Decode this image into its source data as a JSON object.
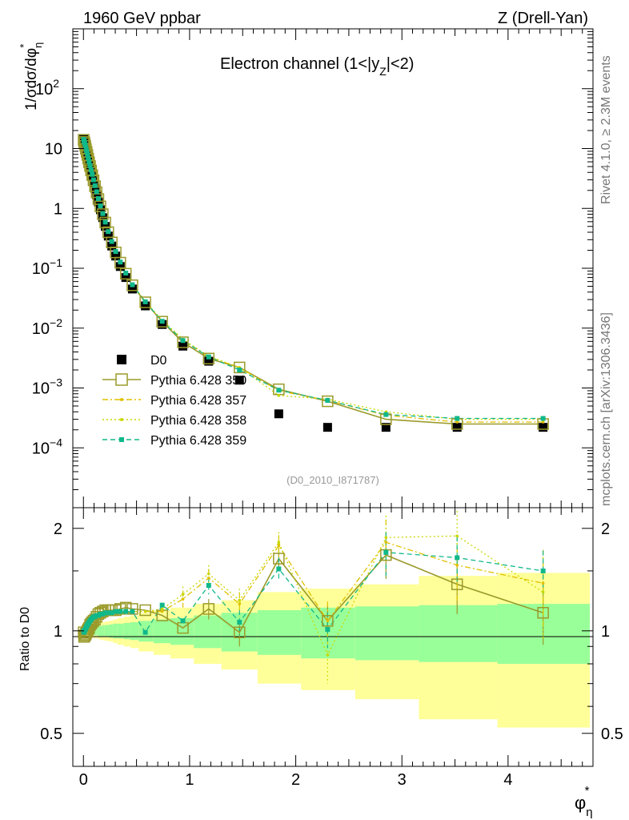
{
  "header": {
    "left": "1960 GeV ppbar",
    "right": "Z (Drell-Yan)",
    "side_top": "Rivet 4.1.0, ≥ 2.3M events",
    "side_bottom": "mcplots.cern.ch [arXiv:1306.3436]"
  },
  "chart_data": [
    {
      "type": "scatter",
      "panel": "main",
      "title": "Electron channel (1<|y",
      "title_sub": "Z",
      "title_end": "|<2)",
      "reference": "(D0_2010_I871787)",
      "ylabel": "1/σdσ/dφ",
      "ylabel_sub": "η",
      "ylabel_sup": "*",
      "yscale": "log",
      "ylim": [
        1e-05,
        1000
      ],
      "xlim": [
        -0.1,
        4.8
      ],
      "y_ticks": [
        {
          "v": 100,
          "base": "10",
          "exp": "2"
        },
        {
          "v": 10,
          "base": "10",
          "exp": ""
        },
        {
          "v": 1,
          "base": "1",
          "exp": ""
        },
        {
          "v": 0.1,
          "base": "10",
          "exp": "−1"
        },
        {
          "v": 0.01,
          "base": "10",
          "exp": "−2"
        },
        {
          "v": 0.001,
          "base": "10",
          "exp": "−3"
        },
        {
          "v": 0.0001,
          "base": "10",
          "exp": "−4"
        }
      ],
      "x": [
        0.002,
        0.006,
        0.011,
        0.017,
        0.023,
        0.03,
        0.037,
        0.045,
        0.053,
        0.062,
        0.072,
        0.083,
        0.095,
        0.109,
        0.124,
        0.141,
        0.16,
        0.182,
        0.206,
        0.234,
        0.267,
        0.304,
        0.347,
        0.399,
        0.461,
        0.583,
        0.742,
        0.937,
        1.18,
        1.47,
        1.84,
        2.3,
        2.85,
        3.52,
        4.33
      ],
      "series": [
        {
          "name": "D0",
          "values": [
            14.2,
            13.4,
            12.6,
            11.4,
            10.1,
            8.9,
            7.8,
            6.7,
            5.8,
            4.9,
            4.1,
            3.4,
            2.75,
            2.15,
            1.68,
            1.28,
            0.95,
            0.7,
            0.5,
            0.345,
            0.235,
            0.16,
            0.107,
            0.07,
            0.045,
            0.0235,
            0.0115,
            0.005,
            0.0028,
            0.00135,
            0.00037,
            0.00022,
            0.00022,
            0.00022,
            0.00022
          ]
        },
        {
          "name": "Pythia 6.428 350",
          "values": [
            14.0,
            12.9,
            12.2,
            11.1,
            9.9,
            8.8,
            7.8,
            6.8,
            5.9,
            5.1,
            4.3,
            3.6,
            2.95,
            2.35,
            1.86,
            1.43,
            1.08,
            0.8,
            0.58,
            0.4,
            0.27,
            0.184,
            0.124,
            0.081,
            0.052,
            0.027,
            0.0128,
            0.0058,
            0.0031,
            0.0022,
            0.00095,
            0.0006,
            0.0003,
            0.00025,
            0.00025
          ]
        },
        {
          "name": "Pythia 6.428 357",
          "values": [
            14.1,
            13.2,
            12.5,
            11.4,
            10.2,
            9.1,
            8.0,
            7.0,
            6.0,
            5.2,
            4.4,
            3.7,
            3.0,
            2.4,
            1.9,
            1.47,
            1.1,
            0.82,
            0.59,
            0.41,
            0.28,
            0.19,
            0.127,
            0.083,
            0.053,
            0.0275,
            0.013,
            0.0064,
            0.0033,
            0.0022,
            0.0009,
            0.00062,
            0.00035,
            0.00027,
            0.00027
          ]
        },
        {
          "name": "Pythia 6.428 358",
          "values": [
            14.3,
            13.4,
            12.7,
            11.5,
            10.3,
            9.2,
            8.1,
            7.1,
            6.1,
            5.3,
            4.5,
            3.75,
            3.05,
            2.45,
            1.93,
            1.5,
            1.12,
            0.83,
            0.6,
            0.42,
            0.285,
            0.193,
            0.129,
            0.085,
            0.054,
            0.028,
            0.0135,
            0.0065,
            0.0034,
            0.0022,
            0.00075,
            0.00065,
            0.0004,
            0.0003,
            0.0003
          ]
        },
        {
          "name": "Pythia 6.428 359",
          "values": [
            14.2,
            13.3,
            12.6,
            11.5,
            10.3,
            9.2,
            8.1,
            7.0,
            6.1,
            5.2,
            4.4,
            3.7,
            3.0,
            2.4,
            1.9,
            1.46,
            1.1,
            0.82,
            0.59,
            0.41,
            0.28,
            0.19,
            0.127,
            0.083,
            0.053,
            0.0275,
            0.013,
            0.0062,
            0.0033,
            0.002,
            0.00092,
            0.00062,
            0.00036,
            0.00031,
            0.00031
          ]
        }
      ]
    },
    {
      "type": "line",
      "panel": "ratio",
      "ylabel": "Ratio to D0",
      "xlabel": "φ",
      "xlabel_sub": "η",
      "xlabel_sup": "*",
      "yscale": "log",
      "ylim": [
        0.4,
        2.3
      ],
      "xlim": [
        -0.1,
        4.8
      ],
      "x_ticks": [
        "0",
        "1",
        "2",
        "3",
        "4"
      ],
      "y_ticks": [
        "0.5",
        "1",
        "2"
      ],
      "band_edges": [
        0.0,
        0.02,
        0.04,
        0.06,
        0.08,
        0.1,
        0.12,
        0.14,
        0.16,
        0.18,
        0.2,
        0.24,
        0.28,
        0.32,
        0.38,
        0.44,
        0.52,
        0.66,
        0.82,
        1.04,
        1.3,
        1.64,
        2.05,
        2.56,
        3.16,
        3.9,
        4.77
      ],
      "band_stat": [
        0.015,
        0.02,
        0.02,
        0.025,
        0.025,
        0.03,
        0.03,
        0.035,
        0.035,
        0.04,
        0.04,
        0.045,
        0.05,
        0.05,
        0.055,
        0.06,
        0.07,
        0.08,
        0.09,
        0.11,
        0.13,
        0.15,
        0.17,
        0.18,
        0.19,
        0.2
      ],
      "band_total": [
        0.03,
        0.035,
        0.04,
        0.04,
        0.045,
        0.05,
        0.05,
        0.055,
        0.06,
        0.06,
        0.065,
        0.07,
        0.08,
        0.09,
        0.1,
        0.11,
        0.13,
        0.15,
        0.17,
        0.2,
        0.23,
        0.3,
        0.33,
        0.37,
        0.45,
        0.48
      ],
      "series": [
        {
          "name": "Pythia 6.428 350",
          "values": [
            0.99,
            0.96,
            0.97,
            0.97,
            0.98,
            0.99,
            1.0,
            1.01,
            1.02,
            1.04,
            1.05,
            1.06,
            1.07,
            1.08,
            1.1,
            1.12,
            1.13,
            1.14,
            1.15,
            1.15,
            1.15,
            1.15,
            1.16,
            1.17,
            1.16,
            1.15,
            1.11,
            1.02,
            1.16,
            0.99,
            1.63,
            1.07,
            1.67,
            1.37,
            1.13
          ],
          "err": [
            0.05,
            0.05,
            0.05,
            0.05,
            0.05,
            0.05,
            0.05,
            0.05,
            0.05,
            0.05,
            0.05,
            0.05,
            0.05,
            0.05,
            0.05,
            0.05,
            0.05,
            0.05,
            0.05,
            0.05,
            0.05,
            0.05,
            0.05,
            0.05,
            0.05,
            0.05,
            0.05,
            0.06,
            0.08,
            0.09,
            0.12,
            0.12,
            0.25,
            0.25,
            0.22
          ]
        },
        {
          "name": "Pythia 6.428 357",
          "values": [
            1.0,
            0.99,
            1.0,
            1.01,
            1.02,
            1.03,
            1.04,
            1.05,
            1.06,
            1.07,
            1.08,
            1.09,
            1.1,
            1.1,
            1.11,
            1.11,
            1.12,
            1.12,
            1.13,
            1.13,
            1.13,
            1.14,
            1.14,
            1.14,
            1.14,
            1.14,
            1.14,
            1.24,
            1.43,
            1.2,
            1.78,
            1.07,
            1.82,
            1.56,
            1.38
          ],
          "err": [
            0.05,
            0.05,
            0.05,
            0.05,
            0.05,
            0.05,
            0.05,
            0.05,
            0.05,
            0.05,
            0.05,
            0.05,
            0.05,
            0.05,
            0.05,
            0.05,
            0.05,
            0.05,
            0.05,
            0.05,
            0.05,
            0.05,
            0.05,
            0.05,
            0.05,
            0.05,
            0.06,
            0.07,
            0.09,
            0.1,
            0.13,
            0.15,
            0.3,
            0.35,
            0.35
          ]
        },
        {
          "name": "Pythia 6.428 358",
          "values": [
            1.0,
            0.99,
            1.0,
            1.01,
            1.02,
            1.03,
            1.04,
            1.05,
            1.06,
            1.07,
            1.08,
            1.09,
            1.1,
            1.1,
            1.11,
            1.11,
            1.12,
            1.12,
            1.13,
            1.13,
            1.13,
            1.14,
            1.14,
            1.14,
            1.14,
            1.14,
            1.16,
            1.28,
            1.47,
            1.23,
            1.82,
            0.85,
            1.88,
            1.9,
            1.3
          ],
          "err": [
            0.05,
            0.05,
            0.05,
            0.05,
            0.05,
            0.05,
            0.05,
            0.05,
            0.05,
            0.05,
            0.05,
            0.05,
            0.05,
            0.05,
            0.05,
            0.05,
            0.05,
            0.05,
            0.05,
            0.05,
            0.05,
            0.05,
            0.05,
            0.05,
            0.05,
            0.05,
            0.06,
            0.07,
            0.09,
            0.1,
            0.13,
            0.15,
            0.3,
            0.35,
            0.35
          ]
        },
        {
          "name": "Pythia 6.428 359",
          "values": [
            1.0,
            0.99,
            1.0,
            1.01,
            1.02,
            1.03,
            1.04,
            1.05,
            1.06,
            1.07,
            1.08,
            1.09,
            1.1,
            1.1,
            1.11,
            1.11,
            1.12,
            1.12,
            1.13,
            1.13,
            1.13,
            1.14,
            1.14,
            1.14,
            1.14,
            0.99,
            1.19,
            1.07,
            1.36,
            1.06,
            1.52,
            1.01,
            1.7,
            1.64,
            1.5
          ],
          "err": [
            0.05,
            0.05,
            0.05,
            0.05,
            0.05,
            0.05,
            0.05,
            0.05,
            0.05,
            0.05,
            0.05,
            0.05,
            0.05,
            0.05,
            0.05,
            0.05,
            0.05,
            0.05,
            0.05,
            0.05,
            0.05,
            0.05,
            0.05,
            0.05,
            0.05,
            0.05,
            0.05,
            0.06,
            0.08,
            0.09,
            0.12,
            0.12,
            0.25,
            0.25,
            0.22
          ]
        }
      ]
    }
  ],
  "legend": [
    {
      "label": "D0",
      "color": "#000000",
      "marker": "square-filled",
      "line": "none"
    },
    {
      "label": "Pythia 6.428 350",
      "color": "#9a9a2a",
      "marker": "square-open",
      "line": "solid"
    },
    {
      "label": "Pythia 6.428 357",
      "color": "#e0c000",
      "marker": "dot",
      "line": "dashdot"
    },
    {
      "label": "Pythia 6.428 358",
      "color": "#c8d800",
      "marker": "dot",
      "line": "dotted"
    },
    {
      "label": "Pythia 6.428 359",
      "color": "#10b88a",
      "marker": "square-small",
      "line": "dashed"
    }
  ],
  "colors": {
    "band_stat": "#99ff99",
    "band_total": "#ffff99",
    "axis": "#000000",
    "grey_text": "#777777"
  }
}
